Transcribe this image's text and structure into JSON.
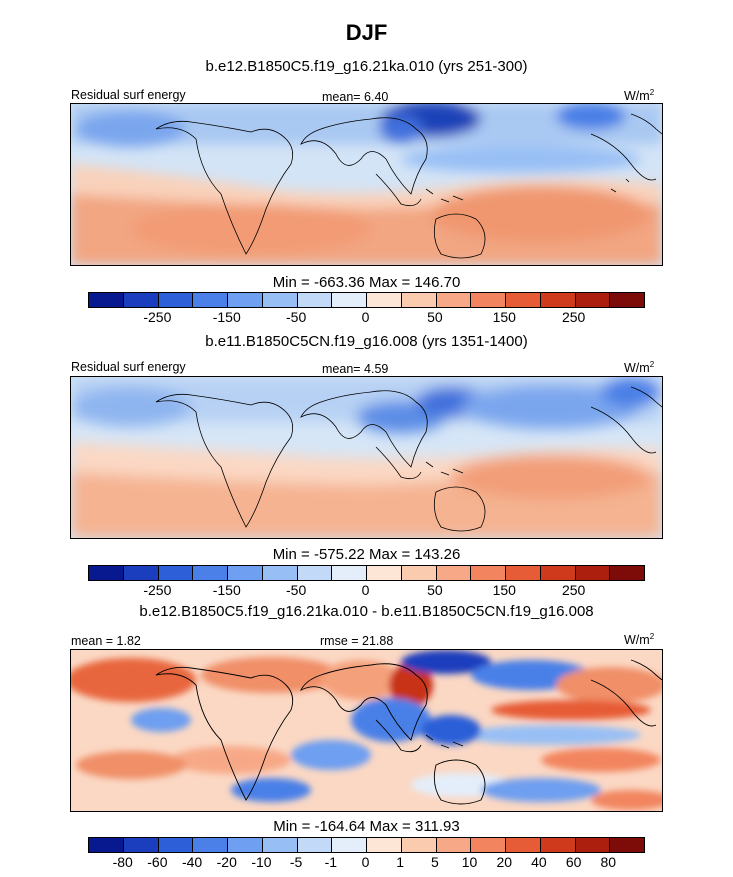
{
  "figure": {
    "title": "DJF"
  },
  "panels": [
    {
      "id": "p1",
      "title": "b.e12.B1850C5.f19_g16.21ka.010 (yrs 251-300)",
      "left_label": "Residual surf energy",
      "center_label": "mean=   6.40",
      "units": "W/m",
      "units_sup": "2",
      "minmax": "Min = -663.36 Max = 146.70",
      "colorbar": {
        "colors": [
          "#08188f",
          "#1a3ebd",
          "#2c5fd8",
          "#4a80e8",
          "#6e9ff0",
          "#98bff5",
          "#c2d9f8",
          "#e4eefa",
          "#fde6d6",
          "#fbcbb0",
          "#f7a987",
          "#f2855f",
          "#e65c36",
          "#cf3a1c",
          "#ac1e0d",
          "#7d0b08"
        ],
        "tick_labels": [
          "-250",
          "-150",
          "-50",
          "0",
          "50",
          "150",
          "250"
        ]
      }
    },
    {
      "id": "p2",
      "title": "b.e11.B1850C5CN.f19_g16.008 (yrs 1351-1400)",
      "left_label": "Residual surf energy",
      "center_label": "mean=   4.59",
      "units": "W/m",
      "units_sup": "2",
      "minmax": "Min = -575.22 Max = 143.26",
      "colorbar": {
        "colors": [
          "#08188f",
          "#1a3ebd",
          "#2c5fd8",
          "#4a80e8",
          "#6e9ff0",
          "#98bff5",
          "#c2d9f8",
          "#e4eefa",
          "#fde6d6",
          "#fbcbb0",
          "#f7a987",
          "#f2855f",
          "#e65c36",
          "#cf3a1c",
          "#ac1e0d",
          "#7d0b08"
        ],
        "tick_labels": [
          "-250",
          "-150",
          "-50",
          "0",
          "50",
          "150",
          "250"
        ]
      }
    },
    {
      "id": "p3",
      "title": "b.e12.B1850C5.f19_g16.21ka.010 - b.e11.B1850C5CN.f19_g16.008",
      "left_label": "mean =   1.82",
      "center_label": "rmse =  21.88",
      "units": "W/m",
      "units_sup": "2",
      "minmax": "Min = -164.64 Max = 311.93",
      "colorbar": {
        "colors": [
          "#08188f",
          "#1a3ebd",
          "#2c5fd8",
          "#4a80e8",
          "#6e9ff0",
          "#98bff5",
          "#c2d9f8",
          "#e4eefa",
          "#fde6d6",
          "#fbcbb0",
          "#f7a987",
          "#f2855f",
          "#e65c36",
          "#cf3a1c",
          "#ac1e0d",
          "#7d0b08"
        ],
        "tick_labels": [
          "-80",
          "-60",
          "-40",
          "-20",
          "-10",
          "-5",
          "-1",
          "0",
          "1",
          "5",
          "10",
          "20",
          "40",
          "60",
          "80"
        ]
      }
    }
  ]
}
